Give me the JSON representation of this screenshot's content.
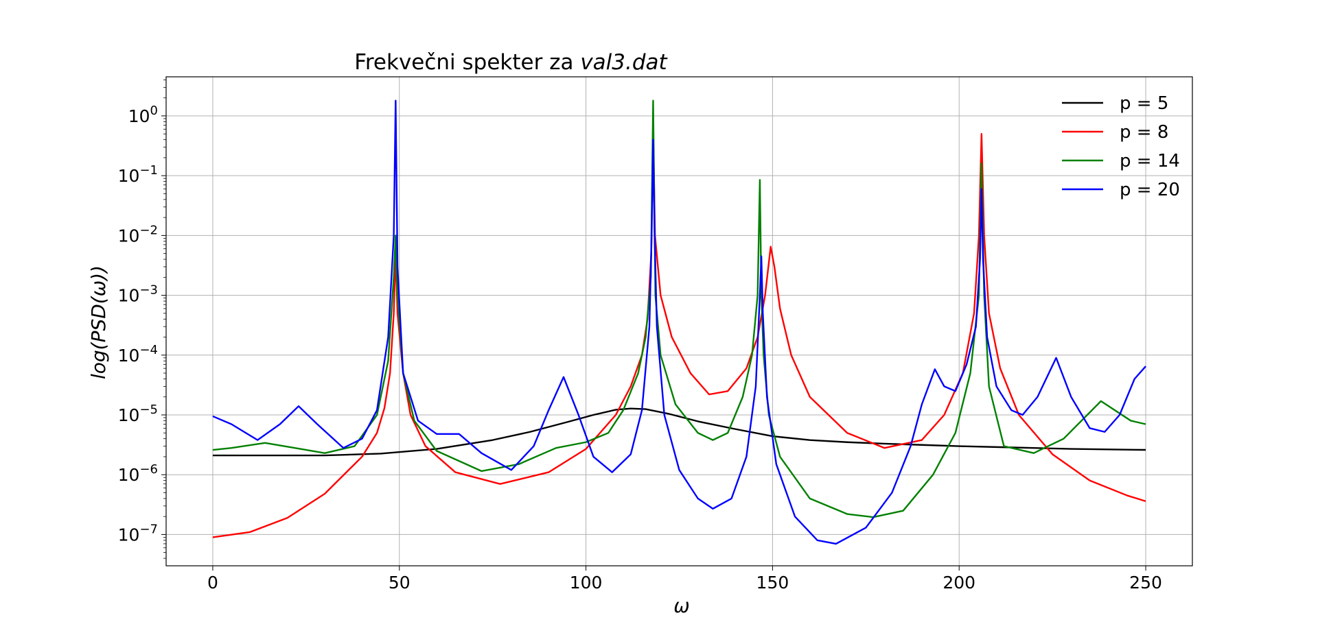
{
  "chart_data": {
    "type": "line",
    "title_prefix": "Frekvečni spekter za ",
    "title_math": "val3.dat",
    "xlabel": "ω",
    "ylabel": "log(PSD(ω))",
    "xlim": [
      -12.5,
      262.5
    ],
    "ylim": [
      3e-08,
      4.5
    ],
    "yscale": "log",
    "grid": true,
    "legend_position": "top-right",
    "x_ticks": [
      0,
      50,
      100,
      150,
      200,
      250
    ],
    "y_ticks": [
      {
        "value": 1.0,
        "base": "10",
        "exp": "0"
      },
      {
        "value": 0.1,
        "base": "10",
        "exp": "−1"
      },
      {
        "value": 0.01,
        "base": "10",
        "exp": "−2"
      },
      {
        "value": 0.001,
        "base": "10",
        "exp": "−3"
      },
      {
        "value": 0.0001,
        "base": "10",
        "exp": "−4"
      },
      {
        "value": 1e-05,
        "base": "10",
        "exp": "−5"
      },
      {
        "value": 1e-06,
        "base": "10",
        "exp": "−6"
      },
      {
        "value": 1e-07,
        "base": "10",
        "exp": "−7"
      }
    ],
    "series": [
      {
        "name": "p = 5",
        "color": "#000000",
        "x": [
          0,
          10,
          30,
          45,
          60,
          75,
          85,
          95,
          102,
          108,
          112,
          116,
          122,
          130,
          140,
          150,
          160,
          170,
          180,
          190,
          200,
          210,
          220,
          230,
          240,
          250
        ],
        "y": [
          2.1e-06,
          2.1e-06,
          2.1e-06,
          2.25e-06,
          2.7e-06,
          3.8e-06,
          5.2e-06,
          7.6e-06,
          1e-05,
          1.22e-05,
          1.28e-05,
          1.25e-05,
          1.05e-05,
          7.8e-06,
          5.8e-06,
          4.4e-06,
          3.8e-06,
          3.5e-06,
          3.3e-06,
          3.15e-06,
          3e-06,
          2.9e-06,
          2.8e-06,
          2.7e-06,
          2.65e-06,
          2.6e-06
        ]
      },
      {
        "name": "p = 8",
        "color": "#ff0000",
        "x": [
          0,
          10,
          20,
          30,
          40,
          44,
          46,
          47.5,
          48.5,
          49,
          49.5,
          51,
          53,
          57,
          65,
          77,
          90,
          100,
          108,
          112,
          115,
          116.5,
          117.5,
          118,
          118.5,
          120,
          123,
          128,
          133,
          138,
          143,
          146,
          148,
          149.5,
          150.5,
          152,
          155,
          160,
          170,
          180,
          190,
          196,
          201,
          204,
          205.3,
          206,
          206.7,
          208,
          211,
          216,
          225,
          235,
          245,
          250
        ],
        "y": [
          9e-08,
          1.1e-07,
          1.9e-07,
          4.8e-07,
          2e-06,
          5e-06,
          1.3e-05,
          5e-05,
          0.0005,
          0.005,
          0.0005,
          5e-05,
          1e-05,
          3e-06,
          1.1e-06,
          7e-07,
          1.1e-06,
          2.7e-06,
          1e-05,
          3e-05,
          0.0001,
          0.0004,
          0.005,
          0.6,
          0.01,
          0.001,
          0.0002,
          5e-05,
          2.2e-05,
          2.5e-05,
          6e-05,
          0.0002,
          0.001,
          0.0065,
          0.003,
          0.0006,
          0.0001,
          2e-05,
          5e-06,
          2.8e-06,
          3.8e-06,
          1e-05,
          5e-05,
          0.0005,
          0.01,
          0.5,
          0.01,
          0.0005,
          6e-05,
          1e-05,
          2.2e-06,
          8e-07,
          4.5e-07,
          3.6e-07
        ]
      },
      {
        "name": "p = 14",
        "color": "#008000",
        "x": [
          0,
          5,
          14,
          22,
          30,
          38,
          44,
          47,
          48.5,
          49,
          49.5,
          51,
          54,
          60,
          72,
          82,
          92,
          100,
          106,
          110,
          114,
          116,
          117.4,
          118,
          118.6,
          120,
          124,
          130,
          134,
          138,
          142,
          144.5,
          146,
          146.6,
          147,
          147.6,
          149,
          152,
          160,
          170,
          177,
          185,
          193,
          199,
          203,
          205.3,
          206,
          206.7,
          208,
          212,
          220,
          228,
          238,
          246,
          250
        ],
        "y": [
          2.6e-06,
          2.8e-06,
          3.4e-06,
          2.8e-06,
          2.3e-06,
          3e-06,
          1e-05,
          8e-05,
          0.002,
          0.01,
          0.001,
          5e-05,
          8e-06,
          2.5e-06,
          1.15e-06,
          1.5e-06,
          2.8e-06,
          3.5e-06,
          5e-06,
          1.2e-05,
          5e-05,
          0.0002,
          0.002,
          1.8,
          0.001,
          0.0001,
          1.5e-05,
          5e-06,
          3.8e-06,
          5e-06,
          2e-05,
          0.0001,
          0.001,
          0.085,
          0.001,
          0.0001,
          1e-05,
          2e-06,
          4e-07,
          2.2e-07,
          1.95e-07,
          2.5e-07,
          1e-06,
          5e-06,
          5e-05,
          0.001,
          0.16,
          0.001,
          3e-05,
          3e-06,
          2.3e-06,
          4e-06,
          1.7e-05,
          8e-06,
          7e-06
        ]
      },
      {
        "name": "p = 20",
        "color": "#0000ff",
        "x": [
          0,
          5,
          12,
          18,
          23,
          28,
          35,
          40,
          44,
          47,
          48.5,
          49,
          49.5,
          51,
          55,
          60,
          66,
          72,
          80,
          86,
          90,
          94,
          98,
          102,
          107,
          112,
          115,
          117,
          117.6,
          118,
          118.4,
          119,
          121,
          125,
          130,
          134,
          139,
          143,
          145.5,
          146.6,
          147,
          147.4,
          148.5,
          151,
          156,
          162,
          167,
          175,
          182,
          187,
          190,
          193.5,
          196,
          199,
          202,
          204.5,
          205.6,
          206,
          206.4,
          207.5,
          210,
          214,
          217,
          221,
          226,
          230,
          235,
          239,
          243,
          247,
          250
        ],
        "y": [
          9.5e-06,
          7e-06,
          3.8e-06,
          7e-06,
          1.4e-05,
          7e-06,
          2.8e-06,
          4e-06,
          1.2e-05,
          0.0002,
          0.01,
          1.8,
          0.003,
          5e-05,
          8e-06,
          4.8e-06,
          4.8e-06,
          2.3e-06,
          1.2e-06,
          3e-06,
          1.2e-05,
          4.3e-05,
          1e-05,
          2e-06,
          1.1e-06,
          2.2e-06,
          1.2e-05,
          0.0003,
          0.01,
          0.4,
          0.01,
          0.0003,
          1e-05,
          1.2e-06,
          4e-07,
          2.7e-07,
          4e-07,
          2e-06,
          3e-05,
          0.001,
          0.0045,
          0.0005,
          2e-05,
          1.5e-06,
          2e-07,
          8e-08,
          7e-08,
          1.3e-07,
          5e-07,
          3e-06,
          1.5e-05,
          5.8e-05,
          3e-05,
          2.5e-05,
          7e-05,
          0.0003,
          0.004,
          0.06,
          0.004,
          0.0002,
          3e-05,
          1.2e-05,
          1e-05,
          2e-05,
          9e-05,
          2e-05,
          6e-06,
          5.2e-06,
          1e-05,
          4e-05,
          6.5e-05
        ]
      }
    ]
  }
}
